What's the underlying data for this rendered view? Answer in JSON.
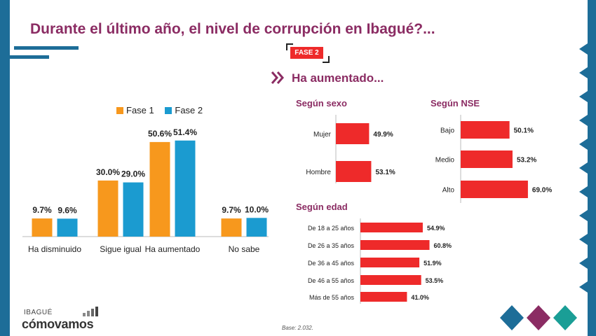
{
  "title": "Durante el último año, el nivel de corrupción en Ibagué?...",
  "badge": "FASE 2",
  "subtitle": "Ha aumentado...",
  "footer": {
    "base": "Base: 2.032.",
    "logo_top": "IBAGUÉ",
    "logo_main": "cómovamos"
  },
  "colors": {
    "fase1": "#f7981d",
    "fase2": "#1b9bd0",
    "red": "#ee2a2a",
    "accent": "#8b2c63",
    "blue": "#1d6d98"
  },
  "chart_data": [
    {
      "type": "bar",
      "categories": [
        "Ha disminuido",
        "Sigue igual",
        "Ha aumentado",
        "No sabe"
      ],
      "series": [
        {
          "name": "Fase 1",
          "values": [
            9.7,
            30.0,
            50.6,
            9.7
          ],
          "labels": [
            "9.7%",
            "30.0%",
            "50.6%",
            "9.7%"
          ]
        },
        {
          "name": "Fase 2",
          "values": [
            9.6,
            29.0,
            51.4,
            10.0
          ],
          "labels": [
            "9.6%",
            "29.0%",
            "51.4%",
            "10.0%"
          ]
        }
      ],
      "ylim": [
        0,
        60
      ],
      "grid": false,
      "legend": "top"
    },
    {
      "type": "bar",
      "orientation": "horizontal",
      "title": "Según sexo",
      "categories": [
        "Mujer",
        "Hombre"
      ],
      "values": [
        49.9,
        53.1
      ],
      "labels": [
        "49.9%",
        "53.1%"
      ]
    },
    {
      "type": "bar",
      "orientation": "horizontal",
      "title": "Según NSE",
      "categories": [
        "Bajo",
        "Medio",
        "Alto"
      ],
      "values": [
        50.1,
        53.2,
        69.0
      ],
      "labels": [
        "50.1%",
        "53.2%",
        "69.0%"
      ]
    },
    {
      "type": "bar",
      "orientation": "horizontal",
      "title": "Según edad",
      "categories": [
        "De 18 a 25 años",
        "De 26 a 35 años",
        "De 36 a 45 años",
        "De 46 a 55 años",
        "Más de 55 años"
      ],
      "values": [
        54.9,
        60.8,
        51.9,
        53.5,
        41.0
      ],
      "labels": [
        "54.9%",
        "60.8%",
        "51.9%",
        "53.5%",
        "41.0%"
      ]
    }
  ]
}
